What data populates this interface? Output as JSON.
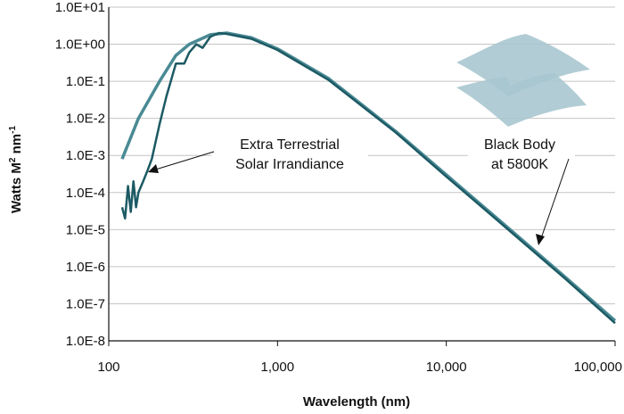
{
  "chart_data": {
    "type": "line",
    "title": "",
    "xlabel": "Wavelength (nm)",
    "ylabel": "Watts M",
    "ylabel_sup1": "2",
    "ylabel_mid": " nm",
    "ylabel_sup2": "-1",
    "x_scale": "log",
    "y_scale": "log",
    "xlim": [
      100,
      100000
    ],
    "ylim": [
      1e-08,
      10
    ],
    "x_ticks": [
      {
        "value": 100,
        "label": "100"
      },
      {
        "value": 1000,
        "label": "1,000"
      },
      {
        "value": 10000,
        "label": "10,000"
      },
      {
        "value": 100000,
        "label": "100,000"
      }
    ],
    "y_ticks": [
      {
        "value": 10,
        "label": "1.0E+01"
      },
      {
        "value": 1,
        "label": "1.0E+00"
      },
      {
        "value": 0.1,
        "label": "1.0E-1"
      },
      {
        "value": 0.01,
        "label": "1.0E-2"
      },
      {
        "value": 0.001,
        "label": "1.0E-3"
      },
      {
        "value": 0.0001,
        "label": "1.0E-4"
      },
      {
        "value": 1e-05,
        "label": "1.0E-5"
      },
      {
        "value": 1e-06,
        "label": "1.0E-6"
      },
      {
        "value": 1e-07,
        "label": "1.0E-7"
      },
      {
        "value": 1e-08,
        "label": "1.0E-8"
      }
    ],
    "grid": true,
    "series": [
      {
        "name": "Black Body at 5800K",
        "color": "#4a8a94",
        "x": [
          120,
          150,
          200,
          250,
          300,
          400,
          500,
          700,
          1000,
          2000,
          5000,
          10000,
          20000,
          50000,
          100000
        ],
        "y": [
          0.0008,
          0.01,
          0.1,
          0.5,
          1.0,
          1.8,
          2.0,
          1.5,
          0.75,
          0.12,
          0.0045,
          0.0003,
          2e-05,
          5.5e-07,
          3.5e-08
        ]
      },
      {
        "name": "Extra Terrestrial Solar Irrandiance",
        "color": "#1c5a64",
        "x": [
          120,
          125,
          130,
          135,
          140,
          145,
          150,
          160,
          170,
          180,
          200,
          220,
          250,
          280,
          300,
          330,
          360,
          400,
          450,
          500,
          700,
          1000,
          2000,
          5000,
          10000,
          20000,
          50000,
          100000
        ],
        "y": [
          4e-05,
          2e-05,
          0.00015,
          3e-05,
          0.0002,
          4e-05,
          0.0001,
          0.0002,
          0.0004,
          0.0008,
          0.007,
          0.04,
          0.3,
          0.3,
          0.6,
          1.0,
          0.8,
          1.6,
          2.0,
          1.9,
          1.4,
          0.7,
          0.11,
          0.0042,
          0.00027,
          1.8e-05,
          5e-07,
          3e-08
        ]
      }
    ],
    "annotations": [
      {
        "line1": "Extra Terrestrial",
        "line2": "Solar Irrandiance",
        "target_series": "Extra Terrestrial Solar Irrandiance"
      },
      {
        "line1": "Black Body",
        "line2": "at 5800K",
        "target_series": "Black Body at 5800K"
      }
    ]
  },
  "colors": {
    "background": "#ffffff",
    "grid": "#c4c4c4",
    "axis": "#111111",
    "logo": "#a9c7cf"
  },
  "logo_icon": "layered-sheets-logo"
}
